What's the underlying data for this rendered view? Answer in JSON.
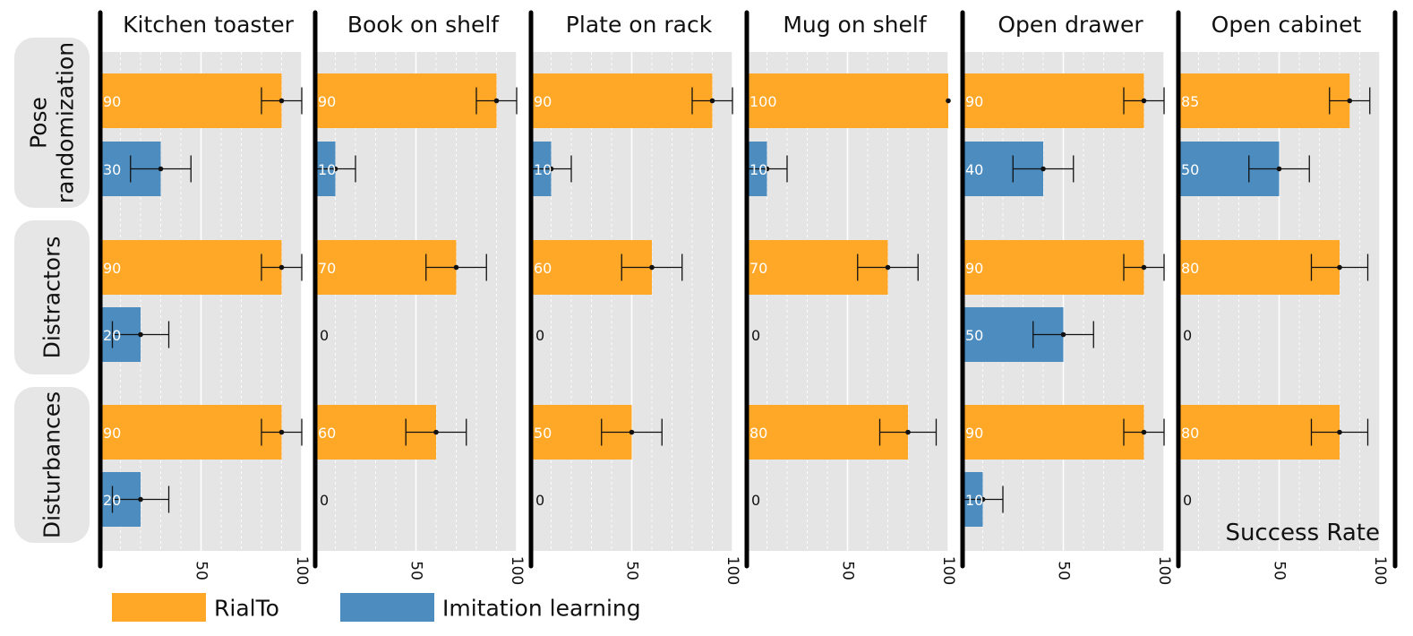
{
  "chart_data": {
    "type": "bar",
    "orientation": "horizontal",
    "xlabel": "Success Rate",
    "xlim": [
      0,
      100
    ],
    "xticks": [
      "50",
      "100"
    ],
    "grid": true,
    "legend_position": "bottom-left",
    "conditions": [
      "Pose randomization",
      "Distractors",
      "Disturbances"
    ],
    "condition_labels": [
      [
        "Pose",
        "randomization"
      ],
      [
        "Distractors"
      ],
      [
        "Disturbances"
      ]
    ],
    "series": [
      {
        "name": "RialTo",
        "color": "#FFA726"
      },
      {
        "name": "Imitation learning",
        "color": "#4C8CBF"
      }
    ],
    "tasks": [
      {
        "title": "Kitchen toaster",
        "values": [
          [
            90,
            30
          ],
          [
            90,
            20
          ],
          [
            90,
            20
          ]
        ],
        "labels": [
          [
            "90",
            "30"
          ],
          [
            "90",
            "20"
          ],
          [
            "90",
            "20"
          ]
        ],
        "errors": [
          [
            10,
            15
          ],
          [
            10,
            14
          ],
          [
            10,
            14
          ]
        ]
      },
      {
        "title": "Book on shelf",
        "values": [
          [
            90,
            10
          ],
          [
            70,
            0
          ],
          [
            60,
            0
          ]
        ],
        "labels": [
          [
            "90",
            "10"
          ],
          [
            "70",
            "0"
          ],
          [
            "60",
            "0"
          ]
        ],
        "errors": [
          [
            10,
            10
          ],
          [
            15,
            0
          ],
          [
            15,
            0
          ]
        ]
      },
      {
        "title": "Plate on rack",
        "values": [
          [
            90,
            10
          ],
          [
            60,
            0
          ],
          [
            50,
            0
          ]
        ],
        "labels": [
          [
            "90",
            "10"
          ],
          [
            "60",
            "0"
          ],
          [
            "50",
            "0"
          ]
        ],
        "errors": [
          [
            10,
            10
          ],
          [
            15,
            0
          ],
          [
            15,
            0
          ]
        ]
      },
      {
        "title": "Mug on shelf",
        "values": [
          [
            100,
            10
          ],
          [
            70,
            0
          ],
          [
            80,
            0
          ]
        ],
        "labels": [
          [
            "100",
            "10"
          ],
          [
            "70",
            "0"
          ],
          [
            "80",
            "0"
          ]
        ],
        "errors": [
          [
            0,
            10
          ],
          [
            15,
            0
          ],
          [
            14,
            0
          ]
        ]
      },
      {
        "title": "Open drawer",
        "values": [
          [
            90,
            40
          ],
          [
            90,
            50
          ],
          [
            90,
            10
          ]
        ],
        "labels": [
          [
            "90",
            "40"
          ],
          [
            "90",
            "50"
          ],
          [
            "90",
            "10"
          ]
        ],
        "errors": [
          [
            10,
            15
          ],
          [
            10,
            15
          ],
          [
            10,
            10
          ]
        ]
      },
      {
        "title": "Open cabinet",
        "values": [
          [
            85,
            50
          ],
          [
            80,
            0
          ],
          [
            80,
            0
          ]
        ],
        "labels": [
          [
            "85",
            "50"
          ],
          [
            "80",
            "0"
          ],
          [
            "80",
            "0"
          ]
        ],
        "errors": [
          [
            10,
            15
          ],
          [
            14,
            0
          ],
          [
            14,
            0
          ]
        ]
      }
    ]
  }
}
